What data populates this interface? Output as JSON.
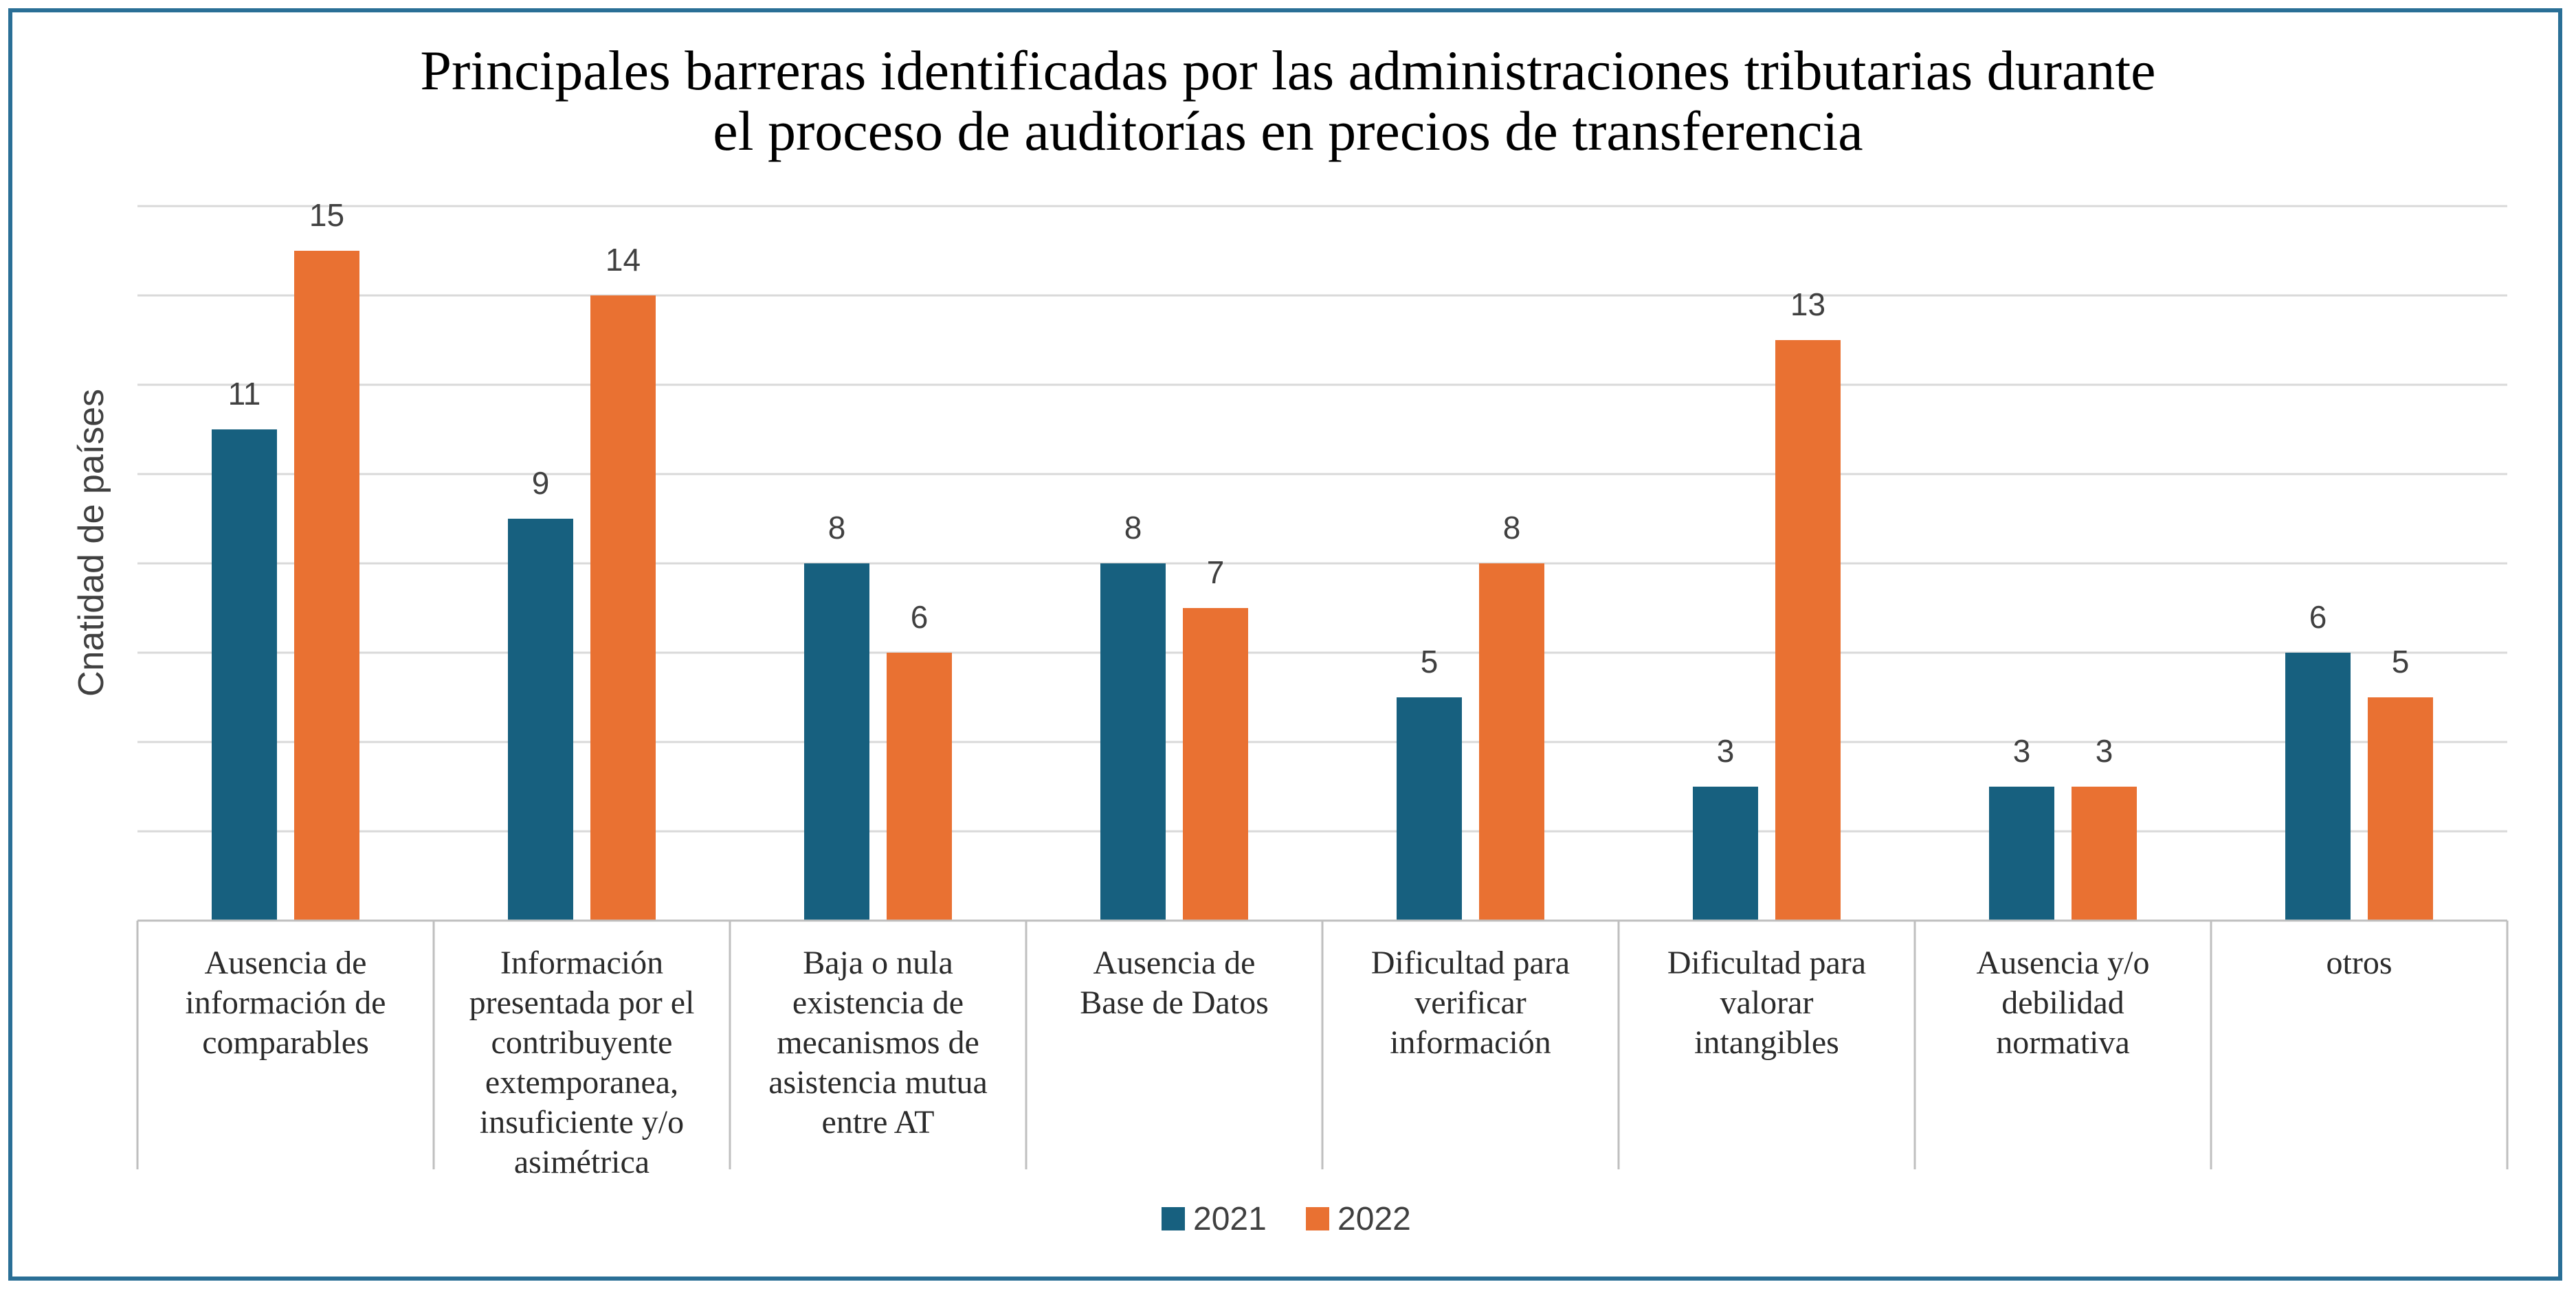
{
  "chart_data": {
    "type": "bar",
    "title": [
      "Principales barreras identificadas por las administraciones tributarias durante",
      "el proceso de auditorías en precios de transferencia"
    ],
    "ylabel": "Cnatidad de países",
    "xlabel": "",
    "ylim": [
      0,
      16
    ],
    "grid": true,
    "legend_position": "bottom",
    "categories": [
      [
        "Ausencia de",
        "información de",
        "comparables"
      ],
      [
        "Información",
        "presentada por el",
        "contribuyente",
        "extemporanea,",
        "insuficiente y/o",
        "asimétrica"
      ],
      [
        "Baja o nula",
        "existencia de",
        "mecanismos de",
        "asistencia mutua",
        "entre AT"
      ],
      [
        "Ausencia de",
        "Base de Datos"
      ],
      [
        "Dificultad para",
        "verificar",
        "información"
      ],
      [
        "Dificultad para",
        "valorar",
        "intangibles"
      ],
      [
        "Ausencia y/o",
        "debilidad",
        "normativa"
      ],
      [
        "otros"
      ]
    ],
    "series": [
      {
        "name": "2021",
        "color": "#17607f",
        "values": [
          11,
          9,
          8,
          8,
          5,
          3,
          3,
          6
        ]
      },
      {
        "name": "2022",
        "color": "#e97132",
        "values": [
          15,
          14,
          6,
          7,
          8,
          13,
          3,
          5
        ]
      }
    ]
  }
}
